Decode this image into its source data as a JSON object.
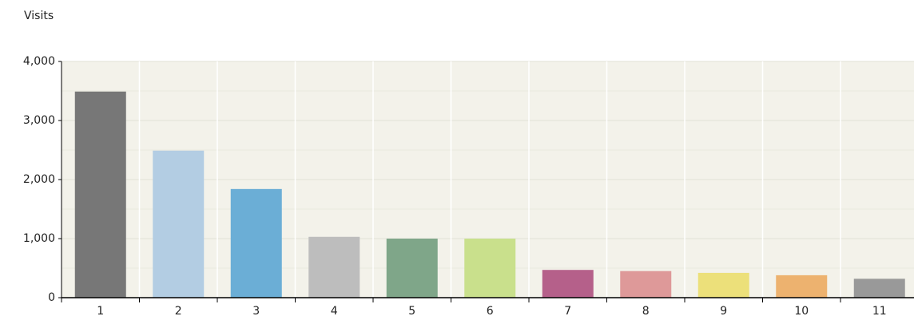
{
  "chart_data": {
    "type": "bar",
    "y_label": "Visits",
    "categories": [
      "1",
      "2",
      "3",
      "4",
      "5",
      "6",
      "7",
      "8",
      "9",
      "10",
      "11"
    ],
    "values": [
      3490,
      2490,
      1840,
      1030,
      1000,
      1000,
      470,
      450,
      420,
      380,
      320
    ],
    "colors": [
      "#777777",
      "#b3cde3",
      "#6baed6",
      "#bdbdbd",
      "#7fa689",
      "#c9e08c",
      "#b5608a",
      "#de9999",
      "#ece07a",
      "#edb26f",
      "#999999"
    ],
    "ylim": [
      0,
      4000
    ],
    "yticks": [
      0,
      {
        "value": 1000,
        "label": "1,000"
      },
      {
        "value": 2000,
        "label": "2,000"
      },
      {
        "value": 3000,
        "label": "3,000"
      },
      {
        "value": 4000,
        "label": "4,000"
      }
    ],
    "grid": true
  }
}
